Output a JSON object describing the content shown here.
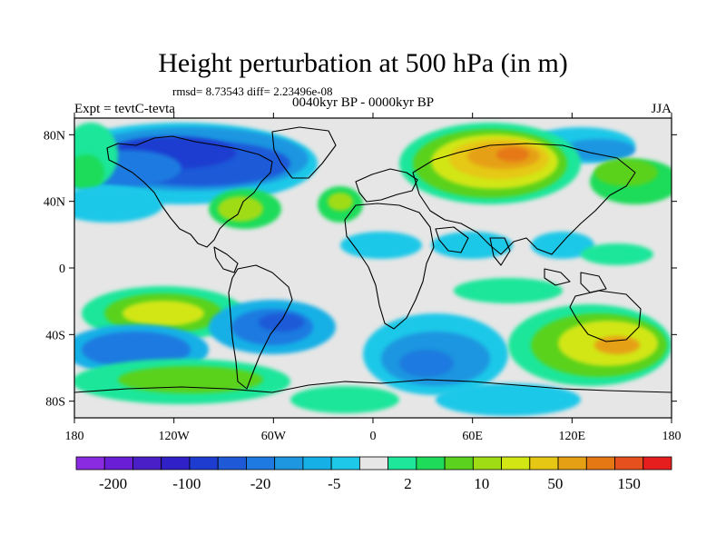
{
  "title": "Height perturbation at 500 hPa (in m)",
  "stats": "rmsd= 8.73543 diff= 2.23496e-08",
  "left_label": "Expt = tevtC-tevta",
  "center_label": "0040kyr BP - 0000kyr BP",
  "right_label": "JJA",
  "lat_ticks": [
    "80N",
    "40N",
    "0",
    "40S",
    "80S"
  ],
  "lon_ticks": [
    "180",
    "120W",
    "60W",
    "0",
    "60E",
    "120E",
    "180"
  ],
  "colorbar": {
    "colors": [
      "#8a2be2",
      "#6a1fd6",
      "#4b1fc8",
      "#3020c8",
      "#1e3cd0",
      "#1e5ad8",
      "#1e7ae0",
      "#1e96e0",
      "#14b0e6",
      "#1ec8e8",
      "#e6e6e6",
      "#1ee69a",
      "#1edc5a",
      "#5ad21e",
      "#a0dc14",
      "#d2e614",
      "#e6c814",
      "#e6a014",
      "#e67814",
      "#e6501e",
      "#e61e1e"
    ],
    "labels": [
      "-200",
      "-100",
      "-20",
      "-5",
      "2",
      "10",
      "50",
      "150"
    ]
  },
  "colors": {
    "background": "#e6e6e6",
    "coast": "#000000"
  }
}
